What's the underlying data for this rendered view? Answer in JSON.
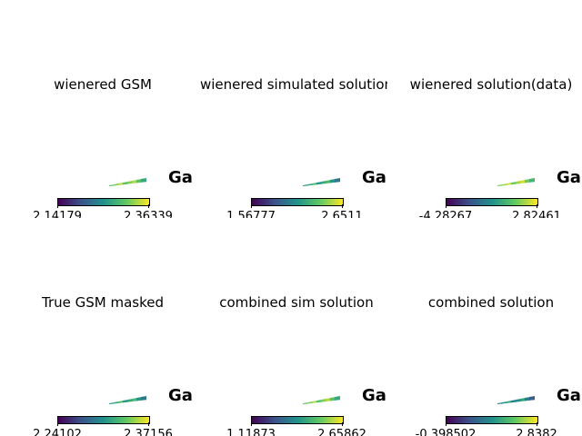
{
  "chart_data": [
    {
      "type": "heatmap",
      "title": "wienered GSM",
      "overlay_text": "Gala",
      "colormap": "viridis",
      "colorbar": {
        "min_label": "2.14179",
        "max_label": "2.36339",
        "min": 2.14179,
        "max": 2.36339
      },
      "dominant_level": 0.8
    },
    {
      "type": "heatmap",
      "title": "wienered simulated solution",
      "overlay_text": "Gala",
      "colormap": "viridis",
      "colorbar": {
        "min_label": "1.56777",
        "max_label": "2.6511",
        "min": 1.56777,
        "max": 2.6511
      },
      "dominant_level": 0.6
    },
    {
      "type": "heatmap",
      "title": "wienered solution(data)",
      "overlay_text": "Gala",
      "colormap": "viridis",
      "colorbar": {
        "min_label": "-4.28267",
        "max_label": "2.82461",
        "min": -4.28267,
        "max": 2.82461
      },
      "dominant_level": 0.85
    },
    {
      "type": "heatmap",
      "title": "True GSM masked",
      "overlay_text": "Gala",
      "colormap": "viridis",
      "colorbar": {
        "min_label": "2.24102",
        "max_label": "2.37156",
        "min": 2.24102,
        "max": 2.37156
      },
      "dominant_level": 0.6
    },
    {
      "type": "heatmap",
      "title": "combined sim solution",
      "overlay_text": "Gala",
      "colormap": "viridis",
      "colorbar": {
        "min_label": "1.11873",
        "max_label": "2.65862",
        "min": 1.11873,
        "max": 2.65862
      },
      "dominant_level": 0.8
    },
    {
      "type": "heatmap",
      "title": "combined solution",
      "overlay_text": "Gala",
      "colormap": "viridis",
      "colorbar": {
        "min_label": "-0.398502",
        "max_label": "2.8382",
        "min": -0.398502,
        "max": 2.8382
      },
      "dominant_level": 0.5
    }
  ]
}
